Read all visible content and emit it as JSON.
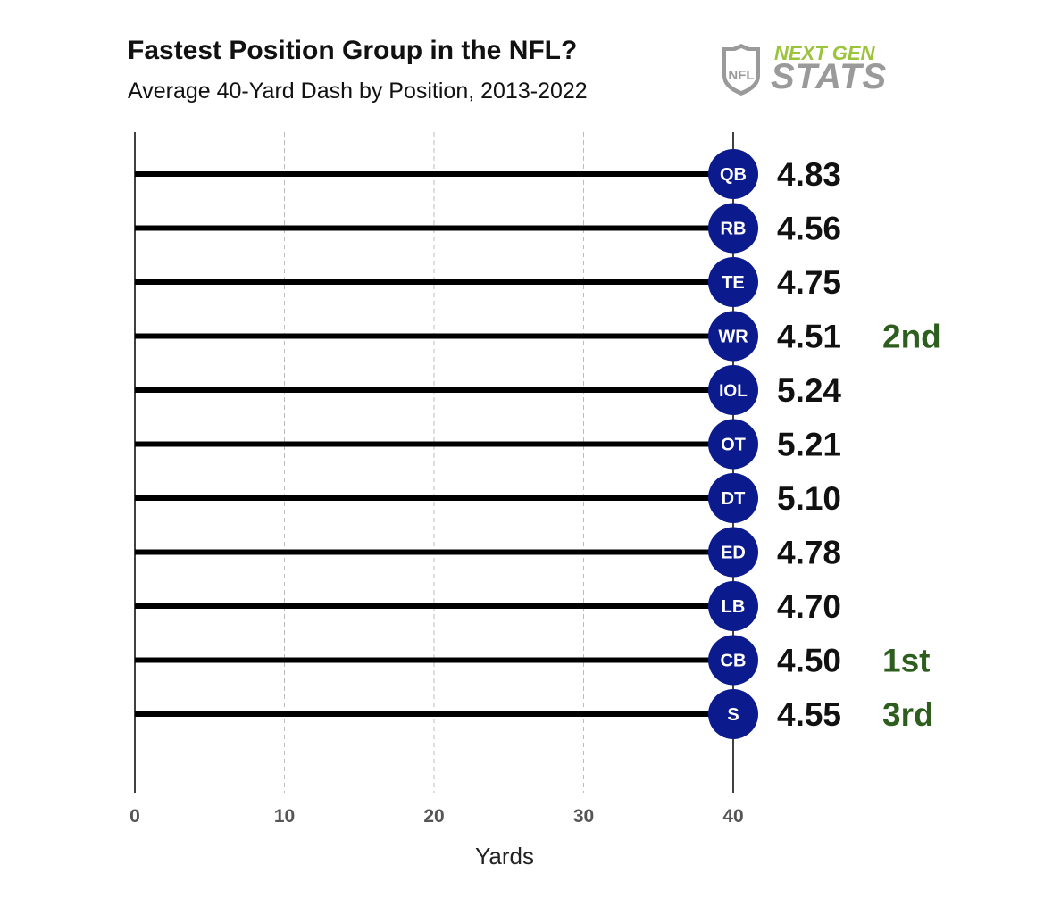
{
  "header": {
    "title": "Fastest Position Group in the NFL?",
    "subtitle": "Average 40-Yard Dash by Position, 2013-2022"
  },
  "logo": {
    "shield_text": "NFL",
    "line1": "NEXT GEN",
    "line2": "STATS",
    "line1_color": "#9bc43c",
    "line2_color": "#9a9a9a"
  },
  "colors": {
    "marker": "#0b1a8c",
    "rank": "#2e5e1e",
    "bar": "#000000",
    "grid": "#bbbbbb"
  },
  "chart_data": {
    "type": "bar",
    "orientation": "horizontal",
    "title": "Fastest Position Group in the NFL?",
    "subtitle": "Average 40-Yard Dash by Position, 2013-2022",
    "xlabel": "Yards",
    "ylabel": "",
    "xlim": [
      0,
      40
    ],
    "xticks": [
      0,
      10,
      20,
      30,
      40
    ],
    "grid": "vertical dashed",
    "categories": [
      "QB",
      "RB",
      "TE",
      "WR",
      "IOL",
      "OT",
      "DT",
      "ED",
      "LB",
      "CB",
      "S"
    ],
    "distance_yards": [
      40,
      40,
      40,
      40,
      40,
      40,
      40,
      40,
      40,
      40,
      40
    ],
    "times": [
      "4.83",
      "4.56",
      "4.75",
      "4.51",
      "5.24",
      "5.21",
      "5.10",
      "4.78",
      "4.70",
      "4.50",
      "4.55"
    ],
    "ranks": [
      "",
      "",
      "",
      "2nd",
      "",
      "",
      "",
      "",
      "",
      "1st",
      "3rd"
    ]
  }
}
